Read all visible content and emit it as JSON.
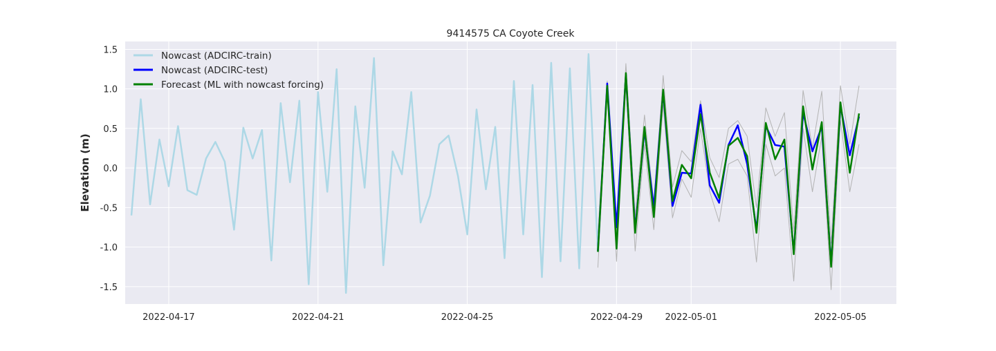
{
  "chart_data": {
    "type": "line",
    "title": "9414575 CA Coyote Creek",
    "xlabel": "",
    "ylabel": "Elevation (m)",
    "xlim": [
      "2022-04-15T20:00",
      "2022-05-06T12:00"
    ],
    "ylim": [
      -1.72,
      1.6
    ],
    "x_ticks": [
      "2022-04-17",
      "2022-04-21",
      "2022-04-25",
      "2022-04-29",
      "2022-05-01",
      "2022-05-05"
    ],
    "y_ticks": [
      -1.5,
      -1.0,
      -0.5,
      0.0,
      0.5,
      1.0,
      1.5
    ],
    "grid": true,
    "legend_position": "top-left",
    "series": [
      {
        "name": "Nowcast (ADCIRC-train)",
        "color": "#add8e6",
        "x": [
          "2022-04-16T00:00",
          "2022-04-16T06:00",
          "2022-04-16T12:00",
          "2022-04-16T18:00",
          "2022-04-17T00:00",
          "2022-04-17T06:00",
          "2022-04-17T12:00",
          "2022-04-17T18:00",
          "2022-04-18T00:00",
          "2022-04-18T06:00",
          "2022-04-18T12:00",
          "2022-04-18T18:00",
          "2022-04-19T00:00",
          "2022-04-19T06:00",
          "2022-04-19T12:00",
          "2022-04-19T18:00",
          "2022-04-20T00:00",
          "2022-04-20T06:00",
          "2022-04-20T12:00",
          "2022-04-20T18:00",
          "2022-04-21T00:00",
          "2022-04-21T06:00",
          "2022-04-21T12:00",
          "2022-04-21T18:00",
          "2022-04-22T00:00",
          "2022-04-22T06:00",
          "2022-04-22T12:00",
          "2022-04-22T18:00",
          "2022-04-23T00:00",
          "2022-04-23T06:00",
          "2022-04-23T12:00",
          "2022-04-23T18:00",
          "2022-04-24T00:00",
          "2022-04-24T06:00",
          "2022-04-24T12:00",
          "2022-04-24T18:00",
          "2022-04-25T00:00",
          "2022-04-25T06:00",
          "2022-04-25T12:00",
          "2022-04-25T18:00",
          "2022-04-26T00:00",
          "2022-04-26T06:00",
          "2022-04-26T12:00",
          "2022-04-26T18:00",
          "2022-04-27T00:00",
          "2022-04-27T06:00",
          "2022-04-27T12:00",
          "2022-04-27T18:00",
          "2022-04-28T00:00",
          "2022-04-28T06:00",
          "2022-04-28T12:00"
        ],
        "y": [
          -0.6,
          0.87,
          -0.46,
          0.36,
          -0.23,
          0.53,
          -0.28,
          -0.34,
          0.12,
          0.33,
          0.08,
          -0.78,
          0.51,
          0.12,
          0.48,
          -1.17,
          0.82,
          -0.18,
          0.85,
          -1.47,
          0.96,
          -0.3,
          1.25,
          -1.58,
          0.78,
          -0.25,
          1.39,
          -1.23,
          0.21,
          -0.08,
          0.96,
          -0.69,
          -0.35,
          0.3,
          0.41,
          -0.1,
          -0.84,
          0.74,
          -0.27,
          0.52,
          -1.14,
          1.1,
          -0.84,
          1.05,
          -1.38,
          1.33,
          -1.18,
          1.26,
          -1.27,
          1.44,
          -1.06
        ]
      },
      {
        "name": "Nowcast (ADCIRC-test)",
        "color": "#0000ff",
        "x": [
          "2022-04-28T12:00",
          "2022-04-28T18:00",
          "2022-04-29T00:00",
          "2022-04-29T06:00",
          "2022-04-29T12:00",
          "2022-04-29T18:00",
          "2022-04-30T00:00",
          "2022-04-30T06:00",
          "2022-04-30T12:00",
          "2022-04-30T18:00",
          "2022-05-01T00:00",
          "2022-05-01T06:00",
          "2022-05-01T12:00",
          "2022-05-01T18:00",
          "2022-05-02T00:00",
          "2022-05-02T06:00",
          "2022-05-02T12:00",
          "2022-05-02T18:00",
          "2022-05-03T00:00",
          "2022-05-03T06:00",
          "2022-05-03T12:00",
          "2022-05-03T18:00",
          "2022-05-04T00:00",
          "2022-05-04T06:00",
          "2022-05-04T12:00",
          "2022-05-04T18:00",
          "2022-05-05T00:00",
          "2022-05-05T06:00",
          "2022-05-05T12:00"
        ],
        "y": [
          -1.05,
          1.07,
          -0.75,
          1.18,
          -0.78,
          0.48,
          -0.5,
          0.97,
          -0.48,
          -0.06,
          -0.07,
          0.8,
          -0.22,
          -0.44,
          0.29,
          0.54,
          0.05,
          -0.78,
          0.53,
          0.29,
          0.27,
          -1.07,
          0.7,
          0.21,
          0.52,
          -1.22,
          0.79,
          0.16,
          0.65
        ]
      },
      {
        "name": "Forecast (ML with nowcast forcing)",
        "color": "#008000",
        "x": [
          "2022-04-28T12:00",
          "2022-04-28T18:00",
          "2022-04-29T00:00",
          "2022-04-29T06:00",
          "2022-04-29T12:00",
          "2022-04-29T18:00",
          "2022-04-30T00:00",
          "2022-04-30T06:00",
          "2022-04-30T12:00",
          "2022-04-30T18:00",
          "2022-05-01T00:00",
          "2022-05-01T06:00",
          "2022-05-01T12:00",
          "2022-05-01T18:00",
          "2022-05-02T00:00",
          "2022-05-02T06:00",
          "2022-05-02T12:00",
          "2022-05-02T18:00",
          "2022-05-03T00:00",
          "2022-05-03T06:00",
          "2022-05-03T12:00",
          "2022-05-03T18:00",
          "2022-05-04T00:00",
          "2022-05-04T06:00",
          "2022-05-04T12:00",
          "2022-05-04T18:00",
          "2022-05-05T00:00",
          "2022-05-05T06:00",
          "2022-05-05T12:00"
        ],
        "y": [
          -1.06,
          1.04,
          -1.02,
          1.2,
          -0.82,
          0.52,
          -0.62,
          0.99,
          -0.42,
          0.04,
          -0.13,
          0.68,
          -0.06,
          -0.38,
          0.28,
          0.38,
          0.15,
          -0.82,
          0.57,
          0.11,
          0.36,
          -1.09,
          0.78,
          -0.02,
          0.58,
          -1.25,
          0.83,
          -0.06,
          0.69
        ]
      },
      {
        "color": "#b3b3b3",
        "x": [
          "2022-04-28T12:00",
          "2022-04-28T18:00",
          "2022-04-29T00:00",
          "2022-04-29T06:00",
          "2022-04-29T12:00",
          "2022-04-29T18:00",
          "2022-04-30T00:00",
          "2022-04-30T06:00",
          "2022-04-30T12:00",
          "2022-04-30T18:00",
          "2022-05-01T00:00",
          "2022-05-01T06:00",
          "2022-05-01T12:00",
          "2022-05-01T18:00",
          "2022-05-02T00:00",
          "2022-05-02T06:00",
          "2022-05-02T12:00",
          "2022-05-02T18:00",
          "2022-05-03T00:00",
          "2022-05-03T06:00",
          "2022-05-03T12:00",
          "2022-05-03T18:00",
          "2022-05-04T00:00",
          "2022-05-04T06:00",
          "2022-05-04T12:00",
          "2022-05-04T18:00",
          "2022-05-05T00:00",
          "2022-05-05T06:00",
          "2022-05-05T12:00"
        ],
        "y": [
          -0.85,
          1.1,
          -0.86,
          1.32,
          -0.6,
          0.67,
          -0.45,
          1.17,
          -0.24,
          0.22,
          0.08,
          0.85,
          0.13,
          -0.12,
          0.5,
          0.6,
          0.4,
          -0.5,
          0.76,
          0.4,
          0.7,
          -0.8,
          0.98,
          0.25,
          0.97,
          -0.95,
          1.04,
          0.3,
          1.04
        ]
      },
      {
        "color": "#b3b3b3",
        "x": [
          "2022-04-28T12:00",
          "2022-04-28T18:00",
          "2022-04-29T00:00",
          "2022-04-29T06:00",
          "2022-04-29T12:00",
          "2022-04-29T18:00",
          "2022-04-30T00:00",
          "2022-04-30T06:00",
          "2022-04-30T12:00",
          "2022-04-30T18:00",
          "2022-05-01T00:00",
          "2022-05-01T06:00",
          "2022-05-01T12:00",
          "2022-05-01T18:00",
          "2022-05-02T00:00",
          "2022-05-02T06:00",
          "2022-05-02T12:00",
          "2022-05-02T18:00",
          "2022-05-03T00:00",
          "2022-05-03T06:00",
          "2022-05-03T12:00",
          "2022-05-03T18:00",
          "2022-05-04T00:00",
          "2022-05-04T06:00",
          "2022-05-04T12:00",
          "2022-05-04T18:00",
          "2022-05-05T00:00",
          "2022-05-05T06:00",
          "2022-05-05T12:00"
        ],
        "y": [
          -1.26,
          0.98,
          -1.18,
          1.05,
          -1.05,
          0.3,
          -0.78,
          0.8,
          -0.63,
          -0.14,
          -0.37,
          0.5,
          -0.3,
          -0.68,
          0.05,
          0.11,
          -0.1,
          -1.19,
          0.3,
          -0.1,
          0.0,
          -1.43,
          0.5,
          -0.3,
          0.4,
          -1.54,
          0.6,
          -0.3,
          0.3
        ]
      }
    ]
  }
}
